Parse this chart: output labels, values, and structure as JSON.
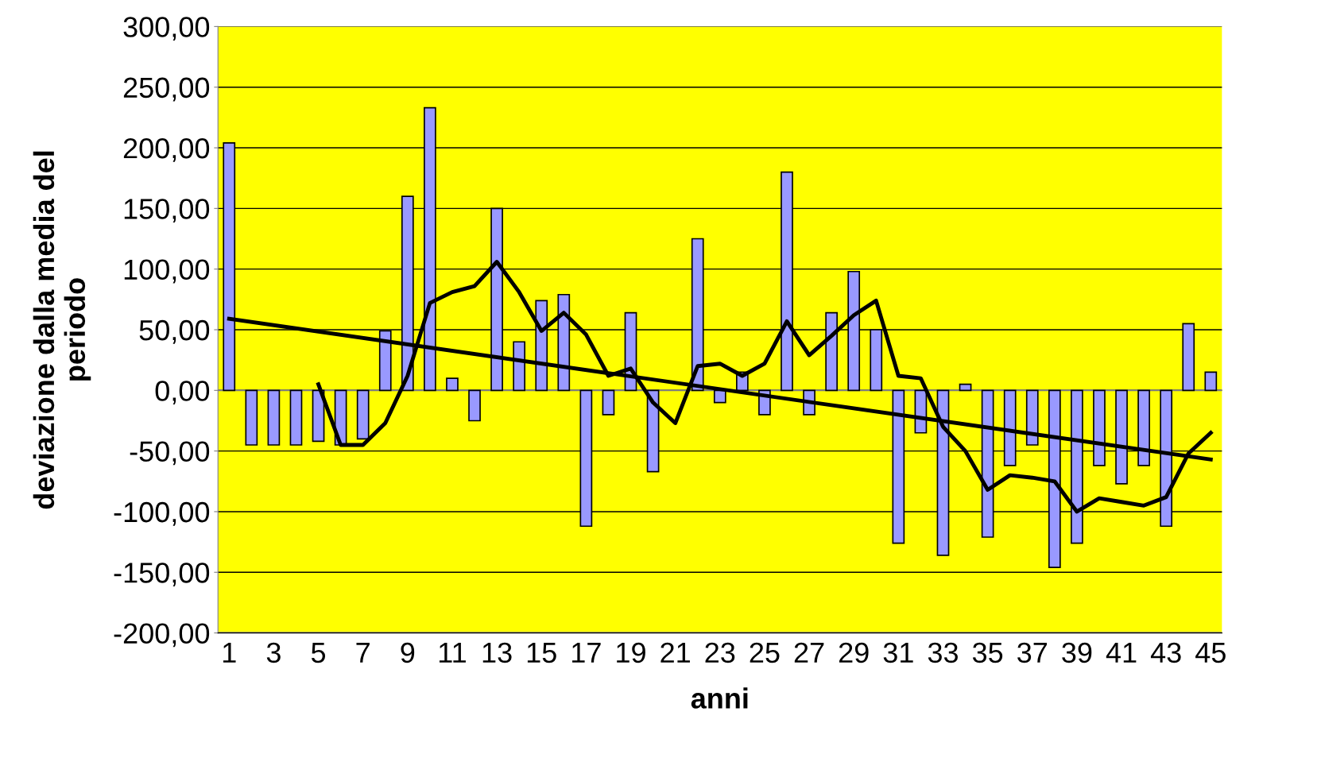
{
  "chart_data": {
    "type": "bar",
    "xlabel": "anni",
    "ylabel": "deviazione dalla media del\nperiodo",
    "x": [
      1,
      2,
      3,
      4,
      5,
      6,
      7,
      8,
      9,
      10,
      11,
      12,
      13,
      14,
      15,
      16,
      17,
      18,
      19,
      20,
      21,
      22,
      23,
      24,
      25,
      26,
      27,
      28,
      29,
      30,
      31,
      32,
      33,
      34,
      35,
      36,
      37,
      38,
      39,
      40,
      41,
      42,
      43,
      44,
      45
    ],
    "xlim": [
      0.5,
      45.5
    ],
    "xticks": [
      1,
      3,
      5,
      7,
      9,
      11,
      13,
      15,
      17,
      19,
      21,
      23,
      25,
      27,
      29,
      31,
      33,
      35,
      37,
      39,
      41,
      43,
      45
    ],
    "ylim": [
      -200,
      300
    ],
    "yticks": [
      {
        "value": -200,
        "label": "-200,00"
      },
      {
        "value": -150,
        "label": "-150,00"
      },
      {
        "value": -100,
        "label": "-100,00"
      },
      {
        "value": -50,
        "label": "-50,00"
      },
      {
        "value": 0,
        "label": "0,00"
      },
      {
        "value": 50,
        "label": "50,00"
      },
      {
        "value": 100,
        "label": "100,00"
      },
      {
        "value": 150,
        "label": "150,00"
      },
      {
        "value": 200,
        "label": "200,00"
      },
      {
        "value": 250,
        "label": "250,00"
      },
      {
        "value": 300,
        "label": "300,00"
      }
    ],
    "grid": "y",
    "series": [
      {
        "color": "#9999ff",
        "values": [
          204,
          -45,
          -45,
          -45,
          -42,
          -45,
          -40,
          49,
          160,
          233,
          10,
          -25,
          150,
          40,
          74,
          79,
          -112,
          -20,
          64,
          -67,
          null,
          125,
          -10,
          15,
          -20,
          180,
          -20,
          64,
          98,
          50,
          -126,
          -35,
          -136,
          5,
          -121,
          -62,
          -45,
          -146,
          -126,
          -62,
          -77,
          -62,
          -112,
          55,
          15
        ]
      },
      {
        "type": "line",
        "color": "#000000",
        "x": [
          5,
          6,
          7,
          8,
          9,
          10,
          11,
          12,
          13,
          14,
          15,
          16,
          17,
          18,
          19,
          20,
          21,
          22,
          23,
          24,
          25,
          26,
          27,
          28,
          29,
          30,
          31,
          32,
          33,
          34,
          35,
          36,
          37,
          38,
          39,
          40,
          41,
          42,
          43,
          44,
          45
        ],
        "values": [
          5,
          -45,
          -45,
          -27,
          12,
          72,
          81,
          86,
          106,
          81,
          49,
          64,
          46,
          12,
          18,
          -10,
          -27,
          20,
          22,
          12,
          22,
          57,
          29,
          45,
          62,
          74,
          12,
          10,
          -30,
          -50,
          -82,
          -70,
          -72,
          -75,
          -100,
          -89,
          -92,
          -95,
          -88,
          -52,
          -35
        ]
      },
      {
        "type": "line",
        "color": "#000000",
        "x": [
          1,
          45
        ],
        "values": [
          59,
          -57
        ]
      }
    ]
  }
}
